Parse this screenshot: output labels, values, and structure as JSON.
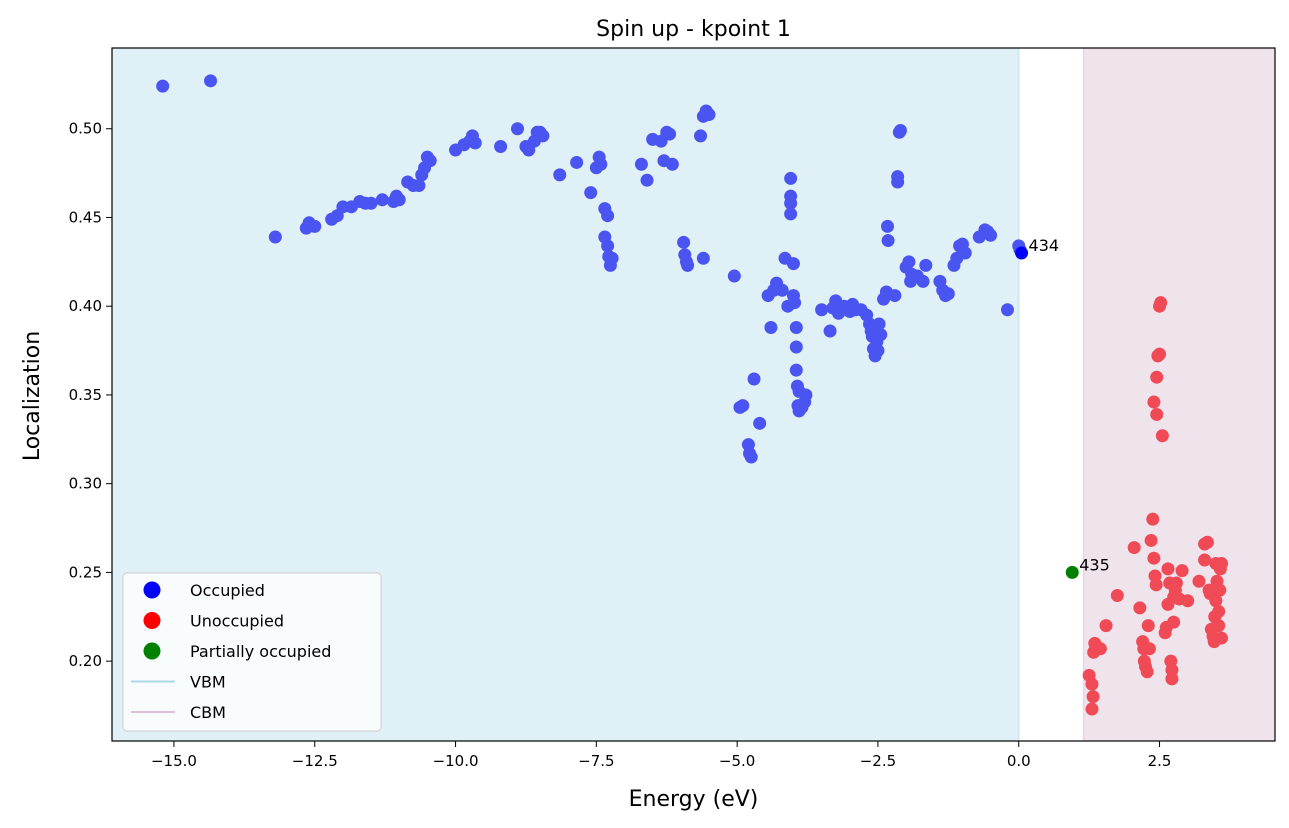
{
  "chart_data": {
    "type": "scatter",
    "title": "Spin up - kpoint 1",
    "xlabel": "Energy (eV)",
    "ylabel": "Localization",
    "xlim": [
      -16.1,
      4.55
    ],
    "ylim": [
      0.155,
      0.5455
    ],
    "x_ticks": [
      -15.0,
      -12.5,
      -10.0,
      -7.5,
      -5.0,
      -2.5,
      0.0,
      2.5
    ],
    "x_tick_labels": [
      "−15.0",
      "−12.5",
      "−10.0",
      "−7.5",
      "−5.0",
      "−2.5",
      "0.0",
      "2.5"
    ],
    "y_ticks": [
      0.2,
      0.25,
      0.3,
      0.35,
      0.4,
      0.45,
      0.5
    ],
    "y_tick_labels": [
      "0.20",
      "0.25",
      "0.30",
      "0.35",
      "0.40",
      "0.45",
      "0.50"
    ],
    "grid": false,
    "legend_position": "lower-left",
    "colors": {
      "occupied": "#4a54f0",
      "occupied_vbm_marker": "#0000ff",
      "unoccupied": "#f04a56",
      "partial": "#008000",
      "vbm_region": "#dff0f6",
      "cbm_region": "#efe3ec",
      "vbm_line": "#add8e6",
      "cbm_line": "#d8bfd8"
    },
    "regions": {
      "vbm_energy": 0.0,
      "cbm_energy": 1.15
    },
    "legend": [
      {
        "label": "Occupied",
        "kind": "marker",
        "color": "#0000ff"
      },
      {
        "label": "Unoccupied",
        "kind": "marker",
        "color": "#ff0000"
      },
      {
        "label": "Partially occupied",
        "kind": "marker",
        "color": "#008000"
      },
      {
        "label": "VBM",
        "kind": "line",
        "color": "#add8e6"
      },
      {
        "label": "CBM",
        "kind": "line",
        "color": "#d8bfd8"
      }
    ],
    "annotations": [
      {
        "text": "434",
        "x": 0.05,
        "y": 0.43
      },
      {
        "text": "435",
        "x": 0.95,
        "y": 0.25
      }
    ],
    "series": [
      {
        "name": "Occupied",
        "color": "#4a54f0",
        "points": [
          [
            -15.2,
            0.524
          ],
          [
            -14.35,
            0.527
          ],
          [
            -13.2,
            0.439
          ],
          [
            -12.6,
            0.447
          ],
          [
            -12.65,
            0.444
          ],
          [
            -12.5,
            0.445
          ],
          [
            -12.2,
            0.449
          ],
          [
            -12.1,
            0.451
          ],
          [
            -12.0,
            0.456
          ],
          [
            -11.85,
            0.456
          ],
          [
            -11.7,
            0.459
          ],
          [
            -11.6,
            0.458
          ],
          [
            -11.5,
            0.458
          ],
          [
            -11.3,
            0.46
          ],
          [
            -11.1,
            0.459
          ],
          [
            -11.05,
            0.462
          ],
          [
            -11.0,
            0.46
          ],
          [
            -10.85,
            0.47
          ],
          [
            -10.75,
            0.468
          ],
          [
            -10.65,
            0.468
          ],
          [
            -10.6,
            0.474
          ],
          [
            -10.55,
            0.478
          ],
          [
            -10.5,
            0.484
          ],
          [
            -10.45,
            0.482
          ],
          [
            -10.0,
            0.488
          ],
          [
            -9.85,
            0.491
          ],
          [
            -9.75,
            0.493
          ],
          [
            -9.7,
            0.496
          ],
          [
            -9.65,
            0.492
          ],
          [
            -9.2,
            0.49
          ],
          [
            -8.9,
            0.5
          ],
          [
            -8.75,
            0.49
          ],
          [
            -8.7,
            0.488
          ],
          [
            -8.6,
            0.493
          ],
          [
            -8.55,
            0.498
          ],
          [
            -8.5,
            0.498
          ],
          [
            -8.45,
            0.496
          ],
          [
            -8.15,
            0.474
          ],
          [
            -7.85,
            0.481
          ],
          [
            -7.6,
            0.464
          ],
          [
            -7.5,
            0.478
          ],
          [
            -7.45,
            0.484
          ],
          [
            -7.42,
            0.48
          ],
          [
            -7.35,
            0.455
          ],
          [
            -7.3,
            0.451
          ],
          [
            -7.35,
            0.439
          ],
          [
            -7.3,
            0.434
          ],
          [
            -7.28,
            0.428
          ],
          [
            -7.25,
            0.423
          ],
          [
            -7.22,
            0.427
          ],
          [
            -6.7,
            0.48
          ],
          [
            -6.6,
            0.471
          ],
          [
            -6.5,
            0.494
          ],
          [
            -6.35,
            0.493
          ],
          [
            -6.25,
            0.498
          ],
          [
            -6.2,
            0.497
          ],
          [
            -6.3,
            0.482
          ],
          [
            -6.15,
            0.48
          ],
          [
            -5.95,
            0.436
          ],
          [
            -5.93,
            0.429
          ],
          [
            -5.9,
            0.425
          ],
          [
            -5.88,
            0.423
          ],
          [
            -5.65,
            0.496
          ],
          [
            -5.6,
            0.507
          ],
          [
            -5.55,
            0.51
          ],
          [
            -5.5,
            0.508
          ],
          [
            -5.6,
            0.427
          ],
          [
            -5.05,
            0.417
          ],
          [
            -4.95,
            0.343
          ],
          [
            -4.9,
            0.344
          ],
          [
            -4.8,
            0.322
          ],
          [
            -4.78,
            0.317
          ],
          [
            -4.75,
            0.315
          ],
          [
            -4.7,
            0.359
          ],
          [
            -4.6,
            0.334
          ],
          [
            -4.45,
            0.406
          ],
          [
            -4.4,
            0.388
          ],
          [
            -4.35,
            0.409
          ],
          [
            -4.3,
            0.413
          ],
          [
            -4.2,
            0.409
          ],
          [
            -4.15,
            0.427
          ],
          [
            -4.1,
            0.4
          ],
          [
            -4.05,
            0.472
          ],
          [
            -4.05,
            0.462
          ],
          [
            -4.05,
            0.458
          ],
          [
            -4.05,
            0.452
          ],
          [
            -4.0,
            0.424
          ],
          [
            -4.0,
            0.406
          ],
          [
            -3.98,
            0.402
          ],
          [
            -3.95,
            0.388
          ],
          [
            -3.95,
            0.377
          ],
          [
            -3.95,
            0.364
          ],
          [
            -3.93,
            0.355
          ],
          [
            -3.9,
            0.352
          ],
          [
            -3.92,
            0.344
          ],
          [
            -3.9,
            0.341
          ],
          [
            -3.85,
            0.343
          ],
          [
            -3.8,
            0.346
          ],
          [
            -3.78,
            0.35
          ],
          [
            -3.5,
            0.398
          ],
          [
            -3.35,
            0.386
          ],
          [
            -3.3,
            0.399
          ],
          [
            -3.25,
            0.403
          ],
          [
            -3.2,
            0.396
          ],
          [
            -3.1,
            0.4
          ],
          [
            -3.0,
            0.397
          ],
          [
            -2.95,
            0.401
          ],
          [
            -2.9,
            0.398
          ],
          [
            -2.8,
            0.398
          ],
          [
            -2.7,
            0.395
          ],
          [
            -2.65,
            0.39
          ],
          [
            -2.62,
            0.386
          ],
          [
            -2.6,
            0.383
          ],
          [
            -2.58,
            0.376
          ],
          [
            -2.55,
            0.372
          ],
          [
            -2.5,
            0.375
          ],
          [
            -2.52,
            0.38
          ],
          [
            -2.48,
            0.39
          ],
          [
            -2.45,
            0.384
          ],
          [
            -2.4,
            0.404
          ],
          [
            -2.35,
            0.408
          ],
          [
            -2.33,
            0.445
          ],
          [
            -2.32,
            0.437
          ],
          [
            -2.2,
            0.406
          ],
          [
            -2.15,
            0.473
          ],
          [
            -2.15,
            0.47
          ],
          [
            -2.12,
            0.498
          ],
          [
            -2.1,
            0.499
          ],
          [
            -2.0,
            0.422
          ],
          [
            -1.95,
            0.425
          ],
          [
            -1.92,
            0.414
          ],
          [
            -1.9,
            0.418
          ],
          [
            -1.8,
            0.417
          ],
          [
            -1.7,
            0.414
          ],
          [
            -1.65,
            0.423
          ],
          [
            -1.4,
            0.414
          ],
          [
            -1.35,
            0.409
          ],
          [
            -1.3,
            0.406
          ],
          [
            -1.25,
            0.407
          ],
          [
            -1.15,
            0.423
          ],
          [
            -1.1,
            0.427
          ],
          [
            -1.05,
            0.434
          ],
          [
            -1.0,
            0.435
          ],
          [
            -0.95,
            0.43
          ],
          [
            -0.7,
            0.439
          ],
          [
            -0.6,
            0.443
          ],
          [
            -0.55,
            0.442
          ],
          [
            -0.5,
            0.44
          ],
          [
            -0.2,
            0.398
          ],
          [
            0.0,
            0.434
          ],
          [
            0.02,
            0.432
          ]
        ]
      },
      {
        "name": "Occupied",
        "color": "#0000ff",
        "points": [
          [
            0.05,
            0.43
          ]
        ]
      },
      {
        "name": "Partially occupied",
        "color": "#008000",
        "points": [
          [
            0.95,
            0.25
          ]
        ]
      },
      {
        "name": "Unoccupied",
        "color": "#f04a56",
        "points": [
          [
            1.25,
            0.192
          ],
          [
            1.3,
            0.187
          ],
          [
            1.32,
            0.18
          ],
          [
            1.3,
            0.173
          ],
          [
            1.35,
            0.21
          ],
          [
            1.33,
            0.205
          ],
          [
            1.45,
            0.207
          ],
          [
            1.55,
            0.22
          ],
          [
            1.75,
            0.237
          ],
          [
            2.05,
            0.264
          ],
          [
            2.15,
            0.23
          ],
          [
            2.2,
            0.211
          ],
          [
            2.22,
            0.207
          ],
          [
            2.23,
            0.2
          ],
          [
            2.25,
            0.197
          ],
          [
            2.28,
            0.194
          ],
          [
            2.3,
            0.22
          ],
          [
            2.32,
            0.207
          ],
          [
            2.35,
            0.268
          ],
          [
            2.38,
            0.28
          ],
          [
            2.4,
            0.258
          ],
          [
            2.42,
            0.248
          ],
          [
            2.44,
            0.243
          ],
          [
            2.4,
            0.346
          ],
          [
            2.45,
            0.36
          ],
          [
            2.45,
            0.339
          ],
          [
            2.47,
            0.372
          ],
          [
            2.5,
            0.373
          ],
          [
            2.5,
            0.4
          ],
          [
            2.52,
            0.402
          ],
          [
            2.55,
            0.327
          ],
          [
            2.6,
            0.216
          ],
          [
            2.62,
            0.219
          ],
          [
            2.65,
            0.232
          ],
          [
            2.65,
            0.252
          ],
          [
            2.68,
            0.244
          ],
          [
            2.7,
            0.2
          ],
          [
            2.72,
            0.19
          ],
          [
            2.72,
            0.195
          ],
          [
            2.75,
            0.222
          ],
          [
            2.75,
            0.236
          ],
          [
            2.78,
            0.24
          ],
          [
            2.8,
            0.244
          ],
          [
            2.85,
            0.235
          ],
          [
            2.9,
            0.251
          ],
          [
            3.0,
            0.234
          ],
          [
            3.2,
            0.245
          ],
          [
            3.3,
            0.257
          ],
          [
            3.3,
            0.266
          ],
          [
            3.35,
            0.267
          ],
          [
            3.38,
            0.24
          ],
          [
            3.4,
            0.238
          ],
          [
            3.42,
            0.218
          ],
          [
            3.45,
            0.214
          ],
          [
            3.47,
            0.211
          ],
          [
            3.48,
            0.225
          ],
          [
            3.5,
            0.255
          ],
          [
            3.5,
            0.234
          ],
          [
            3.52,
            0.245
          ],
          [
            3.55,
            0.22
          ],
          [
            3.55,
            0.228
          ],
          [
            3.57,
            0.24
          ],
          [
            3.58,
            0.252
          ],
          [
            3.6,
            0.255
          ],
          [
            3.6,
            0.213
          ]
        ]
      }
    ]
  }
}
